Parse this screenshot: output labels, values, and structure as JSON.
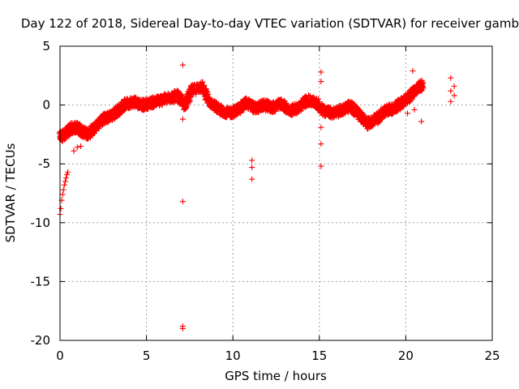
{
  "chart_data": {
    "type": "scatter",
    "title": "Day 122 of 2018, Sidereal Day-to-day VTEC variation (SDTVAR) for receiver gamb",
    "xlabel": "GPS time / hours",
    "ylabel": "SDTVAR / TECUs",
    "xlim": [
      0,
      25
    ],
    "ylim": [
      -20,
      5
    ],
    "xticks": [
      0,
      5,
      10,
      15,
      20,
      25
    ],
    "xtick_labels": [
      "0",
      "5",
      "10",
      "15",
      "20",
      "25"
    ],
    "yticks": [
      -20,
      -15,
      -10,
      -5,
      0,
      5
    ],
    "ytick_labels": [
      "-20",
      "-15",
      "-10",
      "-5",
      "0",
      "5"
    ],
    "grid": true,
    "marker": "+",
    "series": [
      {
        "name": "SDTVAR",
        "color": "#ff0000",
        "trend": [
          [
            0.0,
            -2.7
          ],
          [
            0.3,
            -2.5
          ],
          [
            0.6,
            -2.0
          ],
          [
            1.0,
            -1.9
          ],
          [
            1.3,
            -2.3
          ],
          [
            1.6,
            -2.5
          ],
          [
            2.0,
            -1.9
          ],
          [
            2.5,
            -1.2
          ],
          [
            3.0,
            -0.9
          ],
          [
            3.4,
            -0.4
          ],
          [
            3.8,
            0.1
          ],
          [
            4.3,
            0.3
          ],
          [
            4.8,
            0.0
          ],
          [
            5.3,
            0.2
          ],
          [
            5.8,
            0.4
          ],
          [
            6.3,
            0.6
          ],
          [
            6.8,
            0.8
          ],
          [
            7.2,
            0.0
          ],
          [
            7.6,
            1.2
          ],
          [
            8.2,
            1.6
          ],
          [
            8.6,
            0.3
          ],
          [
            9.2,
            -0.4
          ],
          [
            9.8,
            -0.7
          ],
          [
            10.3,
            -0.4
          ],
          [
            10.8,
            0.2
          ],
          [
            11.3,
            -0.3
          ],
          [
            11.8,
            0.0
          ],
          [
            12.3,
            -0.2
          ],
          [
            12.8,
            0.1
          ],
          [
            13.3,
            -0.5
          ],
          [
            13.8,
            -0.2
          ],
          [
            14.3,
            0.4
          ],
          [
            14.8,
            0.2
          ],
          [
            15.3,
            -0.5
          ],
          [
            15.8,
            -0.7
          ],
          [
            16.3,
            -0.4
          ],
          [
            16.8,
            -0.1
          ],
          [
            17.3,
            -0.8
          ],
          [
            17.8,
            -1.6
          ],
          [
            18.3,
            -1.2
          ],
          [
            18.8,
            -0.5
          ],
          [
            19.3,
            -0.3
          ],
          [
            19.8,
            0.2
          ],
          [
            20.2,
            0.7
          ],
          [
            20.6,
            1.3
          ],
          [
            21.0,
            1.8
          ]
        ],
        "extra_points": [
          [
            0.0,
            -9.3
          ],
          [
            0.05,
            -8.8
          ],
          [
            0.1,
            -8.1
          ],
          [
            0.15,
            -7.6
          ],
          [
            0.2,
            -7.2
          ],
          [
            0.25,
            -6.8
          ],
          [
            0.3,
            -6.5
          ],
          [
            0.35,
            -6.2
          ],
          [
            0.4,
            -5.9
          ],
          [
            0.45,
            -5.7
          ],
          [
            0.8,
            -3.9
          ],
          [
            1.0,
            -3.6
          ],
          [
            1.2,
            -3.5
          ],
          [
            7.1,
            3.4
          ],
          [
            7.1,
            -8.2
          ],
          [
            7.1,
            -18.8
          ],
          [
            7.1,
            -19.0
          ],
          [
            7.1,
            -1.2
          ],
          [
            11.1,
            -4.7
          ],
          [
            11.1,
            -5.3
          ],
          [
            11.1,
            -6.3
          ],
          [
            15.1,
            2.8
          ],
          [
            15.1,
            2.0
          ],
          [
            15.1,
            -1.9
          ],
          [
            15.1,
            -3.3
          ],
          [
            15.1,
            -5.2
          ],
          [
            20.4,
            2.9
          ],
          [
            20.1,
            -0.7
          ],
          [
            20.5,
            -0.4
          ],
          [
            20.9,
            -1.4
          ],
          [
            22.6,
            2.3
          ],
          [
            22.6,
            1.2
          ],
          [
            22.6,
            0.3
          ],
          [
            22.8,
            1.6
          ],
          [
            22.8,
            0.8
          ]
        ]
      }
    ]
  }
}
